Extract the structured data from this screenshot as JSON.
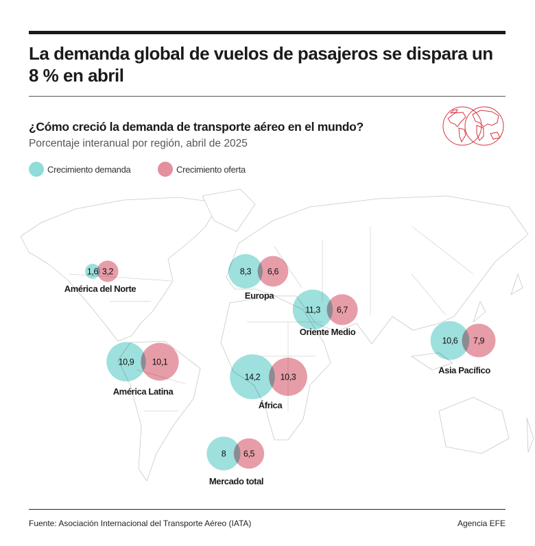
{
  "title": "La demanda global de vuelos de pasajeros se dispara un 8 % en abril",
  "subtitle": "¿Cómo creció la demanda de transporte aéreo en el mundo?",
  "description": "Porcentaje interanual por región, abril de 2025",
  "legend": {
    "demand": {
      "label": "Crecimiento demanda",
      "color": "#8fdcd8"
    },
    "supply": {
      "label": "Crecimiento oferta",
      "color": "#e48f9c"
    }
  },
  "regions": [
    {
      "name": "América del Norte",
      "demand": "1,6",
      "supply": "3,2",
      "demand_value": 1.6,
      "supply_value": 3.2
    },
    {
      "name": "Europa",
      "demand": "8,3",
      "supply": "6,6",
      "demand_value": 8.3,
      "supply_value": 6.6
    },
    {
      "name": "Oriente Medio",
      "demand": "11,3",
      "supply": "6,7",
      "demand_value": 11.3,
      "supply_value": 6.7
    },
    {
      "name": "Asia Pacífico",
      "demand": "10,6",
      "supply": "7,9",
      "demand_value": 10.6,
      "supply_value": 7.9
    },
    {
      "name": "América Latina",
      "demand": "10,9",
      "supply": "10,1",
      "demand_value": 10.9,
      "supply_value": 10.1
    },
    {
      "name": "África",
      "demand": "14,2",
      "supply": "10,3",
      "demand_value": 14.2,
      "supply_value": 10.3
    },
    {
      "name": "Mercado total",
      "demand": "8",
      "supply": "6,5",
      "demand_value": 8,
      "supply_value": 6.5
    }
  ],
  "footer": {
    "source": "Fuente: Asociación Internacional del Transporte Aéreo (IATA)",
    "agency": "Agencia EFE"
  }
}
